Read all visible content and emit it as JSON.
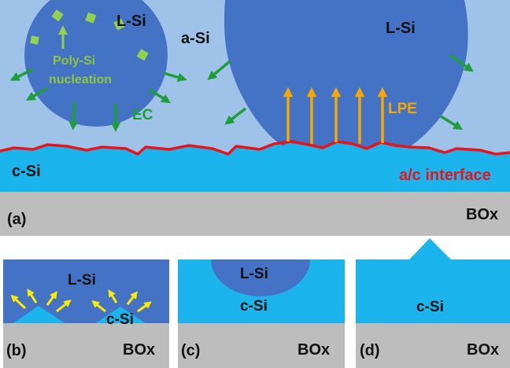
{
  "colors": {
    "amorphous_si": "#9fc3e8",
    "liquid_si": "#4472c4",
    "crystalline_si": "#1cb4ec",
    "box_oxide": "#bdbdbd",
    "interface": "#e8141c",
    "ec_arrow": "#1e9e3a",
    "lpe_arrow": "#f6a800",
    "nucleation": "#92d050",
    "growth_arrow": "#ffeb00"
  },
  "panel_a": {
    "label": "(a)",
    "liquid_left": "L-Si",
    "liquid_right": "L-Si",
    "amorphous": "a-Si",
    "nucleation_line1": "Poly-Si",
    "nucleation_line2": "nucleation",
    "ec": "EC",
    "lpe": "LPE",
    "crystal": "c-Si",
    "interface": "a/c interface",
    "oxide": "BOx"
  },
  "panel_b": {
    "label": "(b)",
    "liquid": "L-Si",
    "crystal": "c-Si",
    "oxide": "BOx"
  },
  "panel_c": {
    "label": "(c)",
    "liquid": "L-Si",
    "crystal": "c-Si",
    "oxide": "BOx"
  },
  "panel_d": {
    "label": "(d)",
    "crystal": "c-Si",
    "oxide": "BOx"
  }
}
